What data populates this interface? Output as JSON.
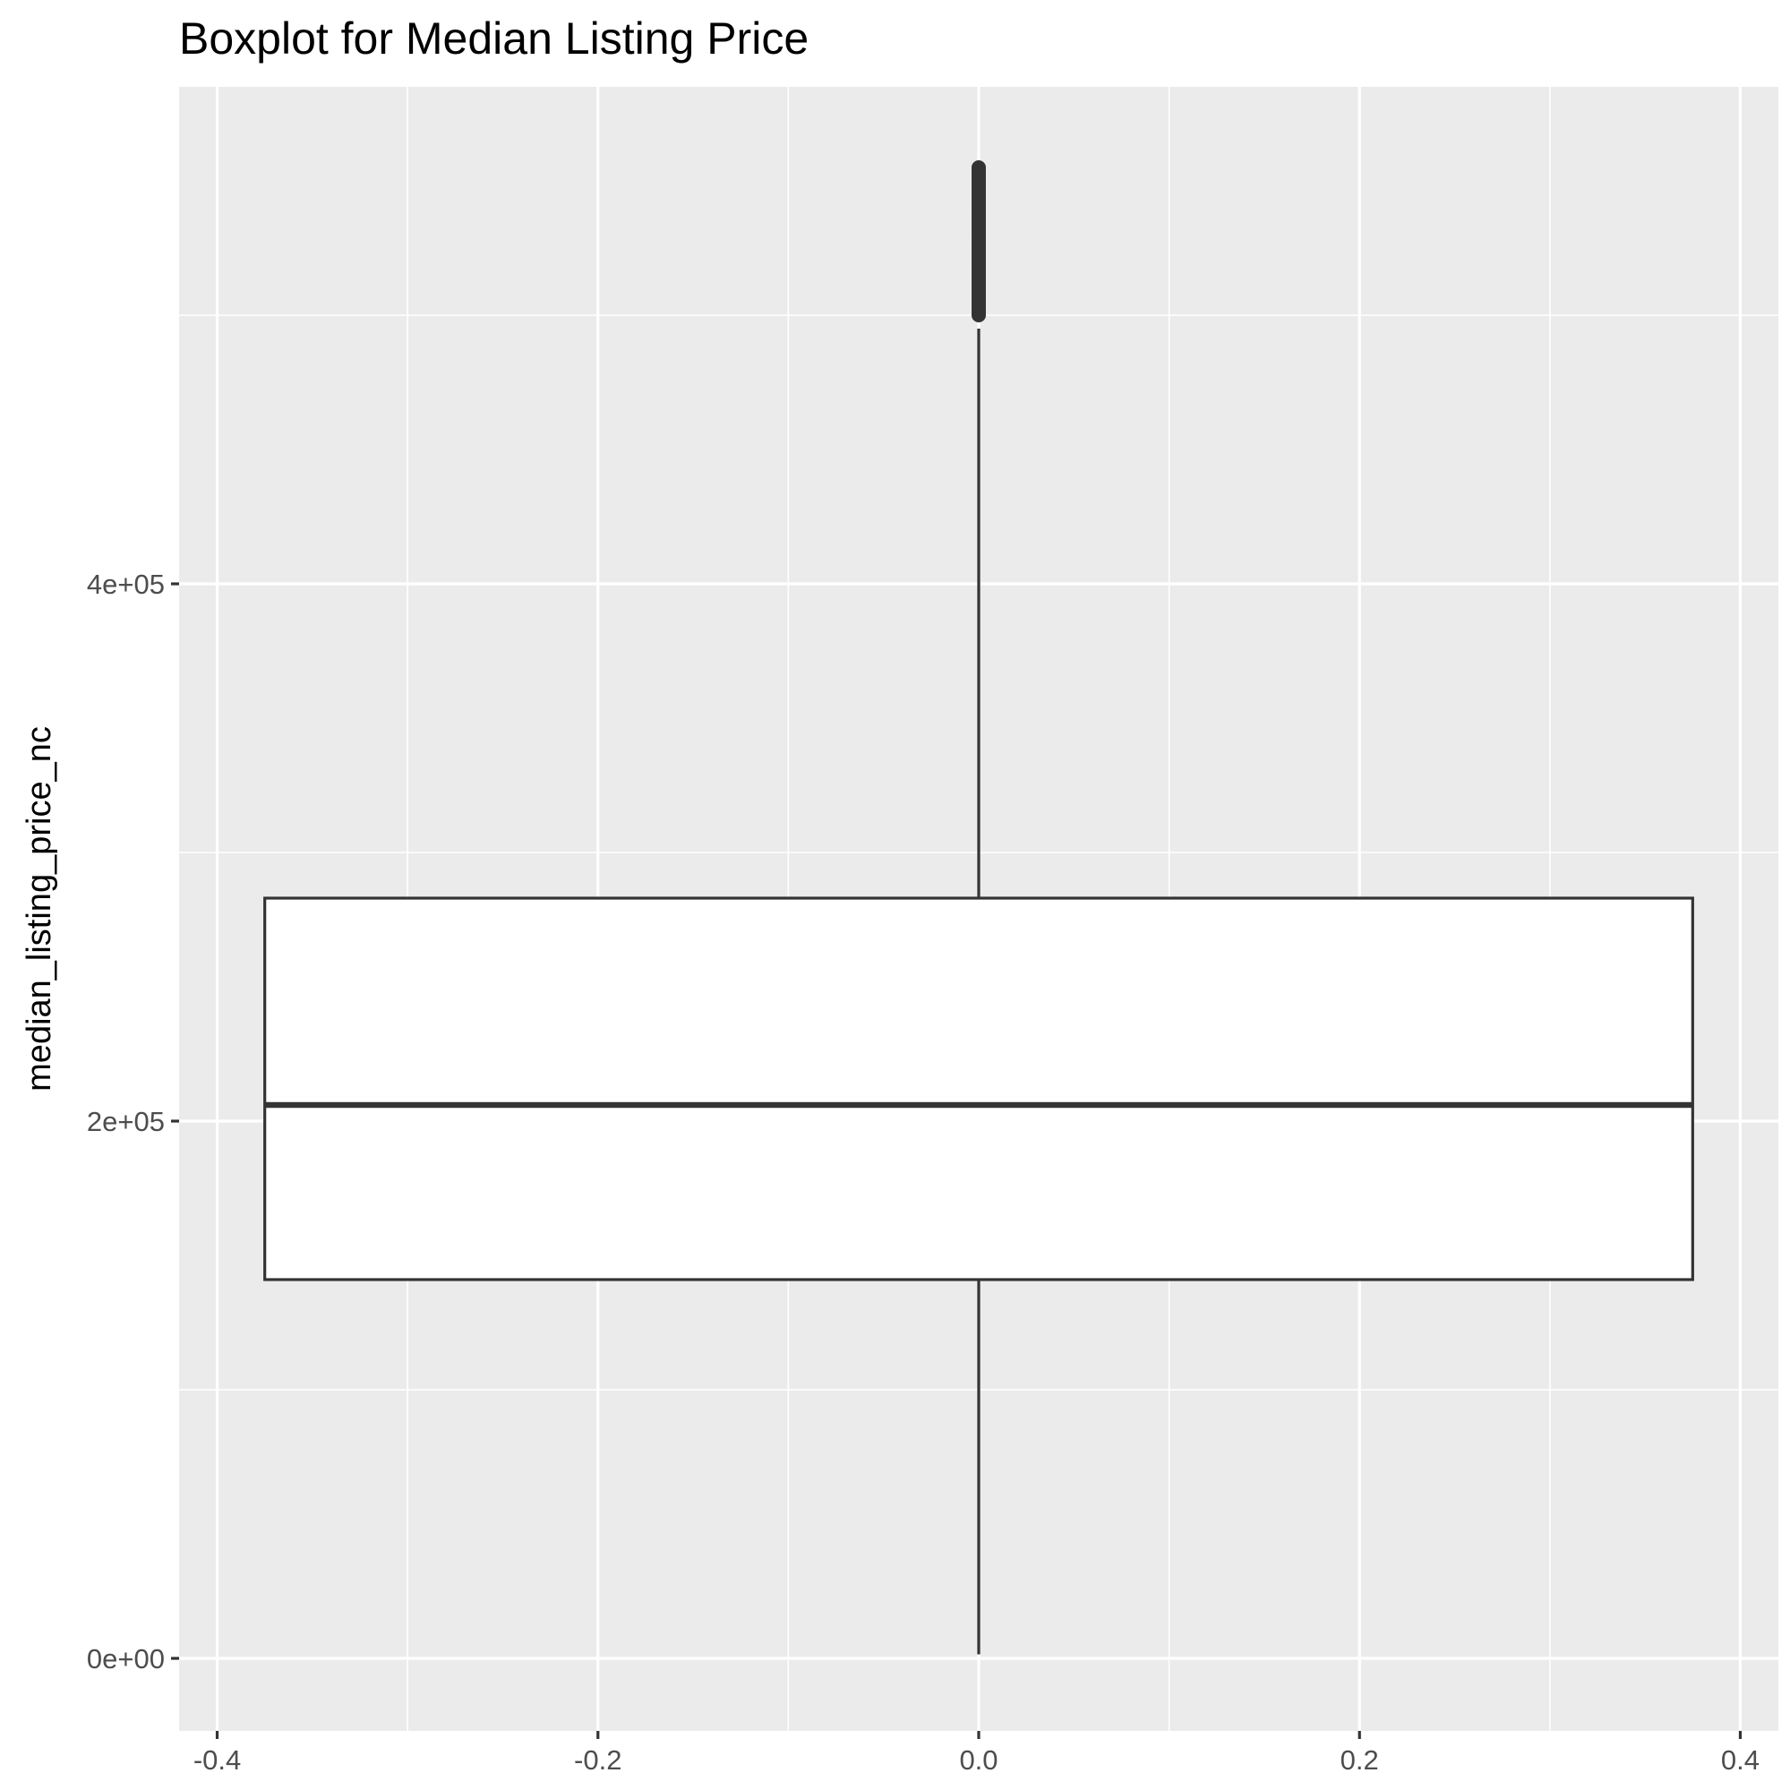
{
  "chart_data": {
    "type": "boxplot",
    "title": "Boxplot for Median Listing Price",
    "xlabel": "",
    "ylabel": "median_listing_price_nc",
    "xlim": [
      -0.42,
      0.42
    ],
    "ylim": [
      -27000,
      585000
    ],
    "x_ticks": [
      {
        "value": -0.4,
        "label": "-0.4"
      },
      {
        "value": -0.2,
        "label": "-0.2"
      },
      {
        "value": 0.0,
        "label": "0.0"
      },
      {
        "value": 0.2,
        "label": "0.2"
      },
      {
        "value": 0.4,
        "label": "0.4"
      }
    ],
    "y_ticks": [
      {
        "value": 0,
        "label": "0e+00"
      },
      {
        "value": 200000,
        "label": "2e+05"
      },
      {
        "value": 400000,
        "label": "4e+05"
      }
    ],
    "y_minor_gridlines": [
      100000,
      300000,
      500000
    ],
    "x_minor_gridlines": [
      -0.3,
      -0.1,
      0.1,
      0.3
    ],
    "grid": true,
    "background": "#ebebeb",
    "box": {
      "x": 0.0,
      "xmin": -0.375,
      "xmax": 0.375,
      "whisker_low": 1500,
      "q1": 141000,
      "median": 206000,
      "q3": 283000,
      "whisker_high": 495000,
      "outliers_min": 500000,
      "outliers_max": 555000,
      "fill": "#ffffff",
      "stroke": "#333333"
    }
  }
}
